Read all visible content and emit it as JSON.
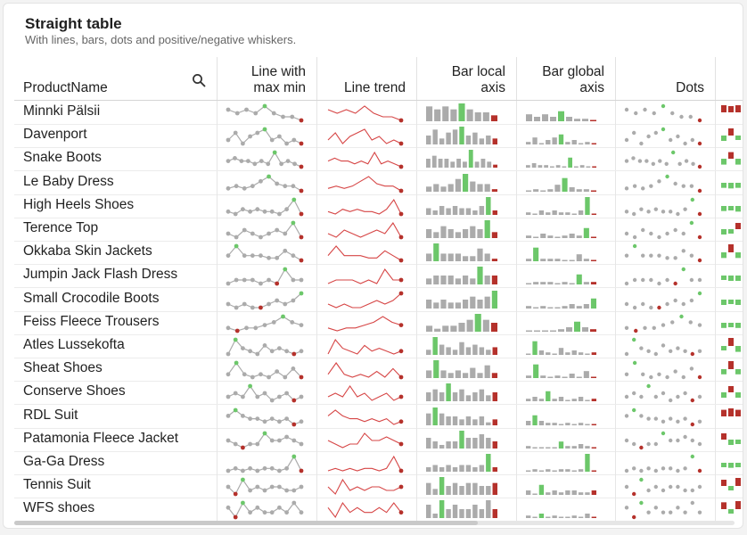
{
  "title": "Straight table",
  "subtitle": "With lines, bars, dots and positive/negative whiskers.",
  "columns": {
    "product": "ProductName",
    "line_maxmin": "Line with\nmax min",
    "line_trend": "Line trend",
    "bar_local": "Bar local\naxis",
    "bar_global": "Bar global\naxis",
    "dots": "Dots"
  },
  "colors": {
    "grey": "#ababab",
    "green": "#6cc76a",
    "red": "#b5312b",
    "trend": "#d64545"
  },
  "icons": {
    "search": "search-icon"
  },
  "rows": [
    {
      "name": "Minnki Pälsii",
      "values": [
        5,
        4,
        5,
        4,
        6,
        4,
        3,
        3,
        2
      ]
    },
    {
      "name": "Davenport",
      "values": [
        3,
        5,
        2,
        4,
        5,
        6,
        3,
        4,
        2,
        3,
        2
      ]
    },
    {
      "name": "Snake Boots",
      "values": [
        3,
        4,
        3,
        3,
        2,
        3,
        2,
        6,
        2,
        3,
        2,
        1
      ]
    },
    {
      "name": "Le Baby Dress",
      "values": [
        2,
        3,
        2,
        3,
        5,
        7,
        4,
        3,
        3,
        1
      ]
    },
    {
      "name": "High Heels Shoes",
      "values": [
        3,
        2,
        4,
        3,
        4,
        3,
        3,
        2,
        4,
        8,
        2
      ]
    },
    {
      "name": "Terence Top",
      "values": [
        3,
        2,
        4,
        3,
        2,
        3,
        4,
        3,
        6,
        2
      ]
    },
    {
      "name": "Okkaba Skin Jackets",
      "values": [
        3,
        7,
        3,
        3,
        3,
        2,
        2,
        5,
        3,
        1
      ]
    },
    {
      "name": "Jumpin Jack Flash Dress",
      "values": [
        2,
        3,
        3,
        3,
        2,
        3,
        2,
        6,
        3,
        3
      ]
    },
    {
      "name": "Small Crocodile Boots",
      "values": [
        3,
        2,
        3,
        2,
        2,
        3,
        4,
        3,
        4,
        6
      ]
    },
    {
      "name": "Feiss Fleece Trousers",
      "values": [
        2,
        1,
        2,
        2,
        3,
        4,
        6,
        4,
        3
      ]
    },
    {
      "name": "Atles Lussekofta",
      "values": [
        2,
        7,
        4,
        3,
        2,
        5,
        3,
        4,
        3,
        2,
        3
      ]
    },
    {
      "name": "Sheat Shoes",
      "values": [
        3,
        7,
        3,
        2,
        3,
        2,
        4,
        2,
        5,
        2
      ]
    },
    {
      "name": "Conserve Shoes",
      "values": [
        3,
        4,
        3,
        6,
        3,
        4,
        2,
        3,
        4,
        2,
        3
      ]
    },
    {
      "name": "RDL Suit",
      "values": [
        4,
        6,
        4,
        3,
        3,
        2,
        3,
        2,
        3,
        1,
        2
      ]
    },
    {
      "name": "Patamonia Fleece Jacket",
      "values": [
        3,
        2,
        1,
        2,
        2,
        5,
        3,
        3,
        4,
        3,
        2
      ]
    },
    {
      "name": "Ga-Ga Dress",
      "values": [
        2,
        3,
        2,
        3,
        2,
        3,
        3,
        2,
        3,
        8,
        2
      ]
    },
    {
      "name": "Tennis Suit",
      "values": [
        4,
        2,
        6,
        3,
        4,
        3,
        4,
        4,
        3,
        3,
        4
      ]
    },
    {
      "name": "WFS shoes",
      "values": [
        3,
        1,
        4,
        2,
        3,
        2,
        2,
        3,
        2,
        4,
        2
      ]
    }
  ]
}
